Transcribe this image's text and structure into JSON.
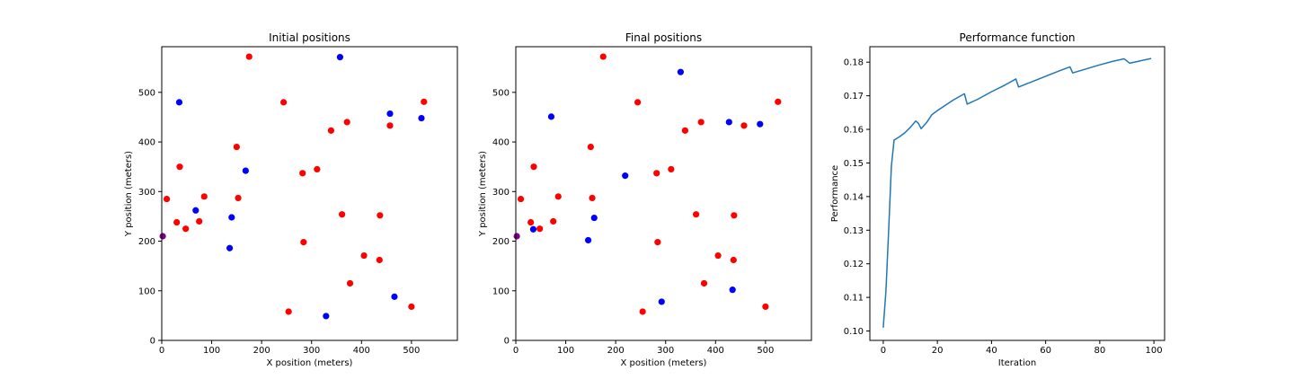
{
  "chart_data": [
    {
      "type": "scatter",
      "title": "Initial positions",
      "xlabel": "X position (meters)",
      "ylabel": "Y position (meters)",
      "xlim": [
        0,
        592
      ],
      "ylim": [
        0,
        592
      ],
      "xticks": [
        0,
        100,
        200,
        300,
        400,
        500
      ],
      "yticks": [
        0,
        100,
        200,
        300,
        400,
        500
      ],
      "grid": false,
      "series": [
        {
          "color": "#ff0000",
          "points": [
            [
              175,
              572
            ],
            [
              244,
              480
            ],
            [
              525,
              481
            ],
            [
              371,
              440
            ],
            [
              339,
              423
            ],
            [
              457,
              433
            ],
            [
              150,
              390
            ],
            [
              36,
              350
            ],
            [
              311,
              345
            ],
            [
              282,
              337
            ],
            [
              10,
              285
            ],
            [
              85,
              290
            ],
            [
              153,
              287
            ],
            [
              30,
              238
            ],
            [
              75,
              240
            ],
            [
              48,
              225
            ],
            [
              361,
              254
            ],
            [
              437,
              252
            ],
            [
              284,
              198
            ],
            [
              405,
              171
            ],
            [
              436,
              162
            ],
            [
              377,
              115
            ],
            [
              254,
              58
            ],
            [
              500,
              68
            ]
          ]
        },
        {
          "color": "#0000ff",
          "points": [
            [
              357,
              571
            ],
            [
              35,
              480
            ],
            [
              457,
              457
            ],
            [
              520,
              448
            ],
            [
              168,
              342
            ],
            [
              68,
              262
            ],
            [
              140,
              248
            ],
            [
              136,
              186
            ],
            [
              466,
              88
            ],
            [
              329,
              49
            ]
          ]
        },
        {
          "color": "#800080",
          "points": [
            [
              2,
              210
            ]
          ]
        }
      ]
    },
    {
      "type": "scatter",
      "title": "Final positions",
      "xlabel": "X position (meters)",
      "ylabel": "Y position (meters)",
      "xlim": [
        0,
        592
      ],
      "ylim": [
        0,
        592
      ],
      "xticks": [
        0,
        100,
        200,
        300,
        400,
        500
      ],
      "yticks": [
        0,
        100,
        200,
        300,
        400,
        500
      ],
      "grid": false,
      "series": [
        {
          "color": "#ff0000",
          "points": [
            [
              175,
              572
            ],
            [
              244,
              480
            ],
            [
              525,
              481
            ],
            [
              371,
              440
            ],
            [
              339,
              423
            ],
            [
              457,
              433
            ],
            [
              150,
              390
            ],
            [
              36,
              350
            ],
            [
              311,
              345
            ],
            [
              282,
              337
            ],
            [
              10,
              285
            ],
            [
              85,
              290
            ],
            [
              153,
              287
            ],
            [
              30,
              238
            ],
            [
              75,
              240
            ],
            [
              48,
              225
            ],
            [
              361,
              254
            ],
            [
              437,
              252
            ],
            [
              284,
              198
            ],
            [
              405,
              171
            ],
            [
              436,
              162
            ],
            [
              377,
              115
            ],
            [
              254,
              58
            ],
            [
              500,
              68
            ]
          ]
        },
        {
          "color": "#0000ff",
          "points": [
            [
              330,
              541
            ],
            [
              71,
              451
            ],
            [
              427,
              440
            ],
            [
              489,
              436
            ],
            [
              219,
              332
            ],
            [
              157,
              247
            ],
            [
              35,
              224
            ],
            [
              145,
              202
            ],
            [
              292,
              78
            ],
            [
              434,
              102
            ]
          ]
        },
        {
          "color": "#800080",
          "points": [
            [
              2,
              210
            ]
          ]
        }
      ]
    },
    {
      "type": "line",
      "title": "Performance function",
      "xlabel": "Iteration",
      "ylabel": "Performance",
      "xlim": [
        -4.95,
        103.95
      ],
      "ylim": [
        0.0972,
        0.1846
      ],
      "xticks": [
        0,
        20,
        40,
        60,
        80,
        100
      ],
      "yticks": [
        0.1,
        0.11,
        0.12,
        0.13,
        0.14,
        0.15,
        0.16,
        0.17,
        0.18
      ],
      "ytick_labels": [
        "0.10",
        "0.11",
        "0.12",
        "0.13",
        "0.14",
        "0.15",
        "0.16",
        "0.17",
        "0.18"
      ],
      "grid": false,
      "series": [
        {
          "color": "#1f77b4",
          "points": [
            [
              0,
              0.101
            ],
            [
              1,
              0.112
            ],
            [
              2,
              0.13
            ],
            [
              3,
              0.149
            ],
            [
              4,
              0.1568
            ],
            [
              6,
              0.1578
            ],
            [
              8,
              0.159
            ],
            [
              10,
              0.1606
            ],
            [
              12,
              0.1625
            ],
            [
              13,
              0.1618
            ],
            [
              14,
              0.1602
            ],
            [
              16,
              0.162
            ],
            [
              18,
              0.1644
            ],
            [
              20,
              0.1656
            ],
            [
              23,
              0.1672
            ],
            [
              26,
              0.1688
            ],
            [
              30,
              0.1706
            ],
            [
              31,
              0.1675
            ],
            [
              35,
              0.169
            ],
            [
              40,
              0.1712
            ],
            [
              45,
              0.1732
            ],
            [
              49,
              0.175
            ],
            [
              50,
              0.1726
            ],
            [
              55,
              0.1742
            ],
            [
              60,
              0.1758
            ],
            [
              65,
              0.1774
            ],
            [
              69,
              0.1786
            ],
            [
              70,
              0.1768
            ],
            [
              75,
              0.178
            ],
            [
              80,
              0.1792
            ],
            [
              85,
              0.1803
            ],
            [
              89,
              0.181
            ],
            [
              91,
              0.1797
            ],
            [
              95,
              0.1804
            ],
            [
              99,
              0.1811
            ]
          ]
        }
      ]
    }
  ]
}
